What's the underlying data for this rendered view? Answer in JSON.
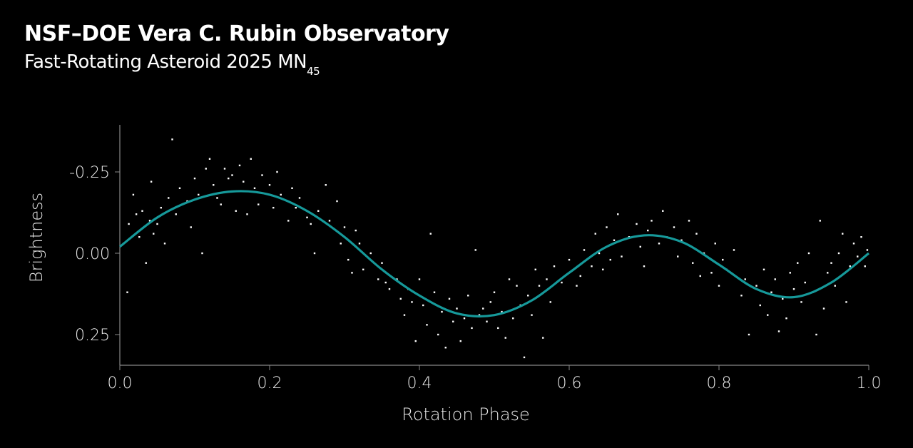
{
  "header": {
    "title": "NSF–DOE Vera C. Rubin Observatory",
    "subtitle_main": "Fast-Rotating Asteroid 2025 MN",
    "subtitle_sub": "45"
  },
  "chart_data": {
    "type": "scatter",
    "title": "NSF–DOE Vera C. Rubin Observatory",
    "subtitle": "Fast-Rotating Asteroid 2025 MN45",
    "xlabel": "Rotation Phase",
    "ylabel": "Brightness",
    "xlim": [
      0.0,
      1.0
    ],
    "ylim": [
      -0.35,
      0.35
    ],
    "y_inverted": true,
    "xticks": [
      "0.0",
      "0.2",
      "0.4",
      "0.6",
      "0.8",
      "1.0"
    ],
    "xtick_values": [
      0,
      0.2,
      0.4,
      0.6,
      0.8,
      1.0
    ],
    "yticks": [
      "-0.25",
      "0.00",
      "0.25"
    ],
    "ytick_values": [
      -0.25,
      0,
      0.25
    ],
    "grid": false,
    "colors": {
      "background": "#000000",
      "points": "#ffffff",
      "fit_line": "#16999a",
      "axis": "#888888"
    },
    "fit_curve": {
      "x": [
        0,
        0.05,
        0.1,
        0.15,
        0.2,
        0.25,
        0.3,
        0.35,
        0.4,
        0.45,
        0.5,
        0.55,
        0.6,
        0.65,
        0.7,
        0.75,
        0.8,
        0.85,
        0.9,
        0.95,
        1.0
      ],
      "y": [
        -0.02,
        -0.11,
        -0.165,
        -0.19,
        -0.18,
        -0.13,
        -0.05,
        0.05,
        0.13,
        0.185,
        0.19,
        0.145,
        0.06,
        -0.02,
        -0.055,
        -0.035,
        0.035,
        0.11,
        0.135,
        0.09,
        0.0
      ]
    },
    "points": [
      [
        0.005,
        -0.03
      ],
      [
        0.01,
        0.12
      ],
      [
        0.012,
        -0.09
      ],
      [
        0.018,
        -0.18
      ],
      [
        0.022,
        -0.12
      ],
      [
        0.026,
        -0.05
      ],
      [
        0.03,
        -0.13
      ],
      [
        0.035,
        0.03
      ],
      [
        0.04,
        -0.1
      ],
      [
        0.042,
        -0.22
      ],
      [
        0.045,
        -0.06
      ],
      [
        0.05,
        -0.09
      ],
      [
        0.055,
        -0.14
      ],
      [
        0.06,
        -0.03
      ],
      [
        0.065,
        -0.17
      ],
      [
        0.07,
        -0.35
      ],
      [
        0.075,
        -0.12
      ],
      [
        0.08,
        -0.2
      ],
      [
        0.09,
        -0.16
      ],
      [
        0.095,
        -0.08
      ],
      [
        0.1,
        -0.23
      ],
      [
        0.105,
        -0.18
      ],
      [
        0.11,
        0.0
      ],
      [
        0.115,
        -0.26
      ],
      [
        0.12,
        -0.29
      ],
      [
        0.125,
        -0.21
      ],
      [
        0.13,
        -0.17
      ],
      [
        0.135,
        -0.15
      ],
      [
        0.14,
        -0.26
      ],
      [
        0.145,
        -0.23
      ],
      [
        0.15,
        -0.24
      ],
      [
        0.155,
        -0.13
      ],
      [
        0.16,
        -0.27
      ],
      [
        0.165,
        -0.22
      ],
      [
        0.17,
        -0.12
      ],
      [
        0.175,
        -0.29
      ],
      [
        0.18,
        -0.2
      ],
      [
        0.185,
        -0.15
      ],
      [
        0.19,
        -0.24
      ],
      [
        0.2,
        -0.21
      ],
      [
        0.205,
        -0.14
      ],
      [
        0.21,
        -0.25
      ],
      [
        0.215,
        -0.18
      ],
      [
        0.225,
        -0.1
      ],
      [
        0.23,
        -0.2
      ],
      [
        0.235,
        -0.14
      ],
      [
        0.24,
        -0.17
      ],
      [
        0.25,
        -0.11
      ],
      [
        0.255,
        -0.09
      ],
      [
        0.26,
        0.0
      ],
      [
        0.265,
        -0.13
      ],
      [
        0.275,
        -0.21
      ],
      [
        0.28,
        -0.1
      ],
      [
        0.29,
        -0.16
      ],
      [
        0.295,
        -0.03
      ],
      [
        0.3,
        -0.08
      ],
      [
        0.305,
        0.02
      ],
      [
        0.31,
        0.06
      ],
      [
        0.315,
        -0.07
      ],
      [
        0.32,
        -0.03
      ],
      [
        0.325,
        0.05
      ],
      [
        0.335,
        0.0
      ],
      [
        0.345,
        0.08
      ],
      [
        0.35,
        0.03
      ],
      [
        0.355,
        0.09
      ],
      [
        0.36,
        0.11
      ],
      [
        0.37,
        0.08
      ],
      [
        0.375,
        0.14
      ],
      [
        0.38,
        0.19
      ],
      [
        0.385,
        0.11
      ],
      [
        0.39,
        0.15
      ],
      [
        0.395,
        0.27
      ],
      [
        0.4,
        0.08
      ],
      [
        0.405,
        0.16
      ],
      [
        0.41,
        0.22
      ],
      [
        0.415,
        -0.06
      ],
      [
        0.42,
        0.12
      ],
      [
        0.425,
        0.25
      ],
      [
        0.43,
        0.18
      ],
      [
        0.435,
        0.29
      ],
      [
        0.44,
        0.14
      ],
      [
        0.445,
        0.21
      ],
      [
        0.45,
        0.17
      ],
      [
        0.455,
        0.27
      ],
      [
        0.46,
        0.2
      ],
      [
        0.465,
        0.13
      ],
      [
        0.47,
        0.23
      ],
      [
        0.475,
        -0.01
      ],
      [
        0.48,
        0.19
      ],
      [
        0.485,
        0.17
      ],
      [
        0.49,
        0.21
      ],
      [
        0.495,
        0.15
      ],
      [
        0.5,
        0.12
      ],
      [
        0.505,
        0.23
      ],
      [
        0.51,
        0.18
      ],
      [
        0.515,
        0.26
      ],
      [
        0.52,
        0.08
      ],
      [
        0.525,
        0.2
      ],
      [
        0.53,
        0.1
      ],
      [
        0.535,
        0.16
      ],
      [
        0.54,
        0.32
      ],
      [
        0.545,
        0.13
      ],
      [
        0.55,
        0.19
      ],
      [
        0.555,
        0.05
      ],
      [
        0.56,
        0.1
      ],
      [
        0.565,
        0.26
      ],
      [
        0.57,
        0.08
      ],
      [
        0.575,
        0.15
      ],
      [
        0.58,
        0.04
      ],
      [
        0.59,
        0.09
      ],
      [
        0.6,
        0.02
      ],
      [
        0.61,
        0.1
      ],
      [
        0.615,
        0.07
      ],
      [
        0.62,
        -0.01
      ],
      [
        0.63,
        0.04
      ],
      [
        0.635,
        -0.06
      ],
      [
        0.64,
        0.0
      ],
      [
        0.645,
        0.05
      ],
      [
        0.65,
        -0.08
      ],
      [
        0.655,
        0.02
      ],
      [
        0.66,
        -0.04
      ],
      [
        0.665,
        -0.12
      ],
      [
        0.67,
        0.01
      ],
      [
        0.68,
        -0.05
      ],
      [
        0.69,
        -0.09
      ],
      [
        0.695,
        -0.02
      ],
      [
        0.7,
        0.04
      ],
      [
        0.705,
        -0.07
      ],
      [
        0.71,
        -0.1
      ],
      [
        0.72,
        -0.03
      ],
      [
        0.725,
        -0.13
      ],
      [
        0.73,
        -0.05
      ],
      [
        0.74,
        -0.08
      ],
      [
        0.745,
        0.01
      ],
      [
        0.75,
        -0.04
      ],
      [
        0.76,
        -0.1
      ],
      [
        0.765,
        0.03
      ],
      [
        0.77,
        -0.06
      ],
      [
        0.775,
        0.07
      ],
      [
        0.78,
        0.0
      ],
      [
        0.79,
        0.06
      ],
      [
        0.795,
        -0.03
      ],
      [
        0.8,
        0.1
      ],
      [
        0.805,
        0.02
      ],
      [
        0.81,
        0.05
      ],
      [
        0.82,
        -0.01
      ],
      [
        0.83,
        0.13
      ],
      [
        0.835,
        0.08
      ],
      [
        0.84,
        0.25
      ],
      [
        0.85,
        0.1
      ],
      [
        0.855,
        0.16
      ],
      [
        0.86,
        0.05
      ],
      [
        0.865,
        0.19
      ],
      [
        0.87,
        0.12
      ],
      [
        0.875,
        0.08
      ],
      [
        0.88,
        0.24
      ],
      [
        0.885,
        0.14
      ],
      [
        0.89,
        0.2
      ],
      [
        0.895,
        0.06
      ],
      [
        0.9,
        0.11
      ],
      [
        0.905,
        0.03
      ],
      [
        0.91,
        0.15
      ],
      [
        0.915,
        0.09
      ],
      [
        0.92,
        0.0
      ],
      [
        0.925,
        0.12
      ],
      [
        0.93,
        0.25
      ],
      [
        0.935,
        -0.1
      ],
      [
        0.94,
        0.17
      ],
      [
        0.945,
        0.06
      ],
      [
        0.95,
        0.03
      ],
      [
        0.955,
        0.1
      ],
      [
        0.96,
        0.0
      ],
      [
        0.965,
        -0.06
      ],
      [
        0.97,
        0.15
      ],
      [
        0.975,
        0.04
      ],
      [
        0.98,
        -0.03
      ],
      [
        0.985,
        0.01
      ],
      [
        0.99,
        -0.05
      ],
      [
        0.995,
        0.04
      ],
      [
        0.998,
        -0.01
      ]
    ]
  }
}
